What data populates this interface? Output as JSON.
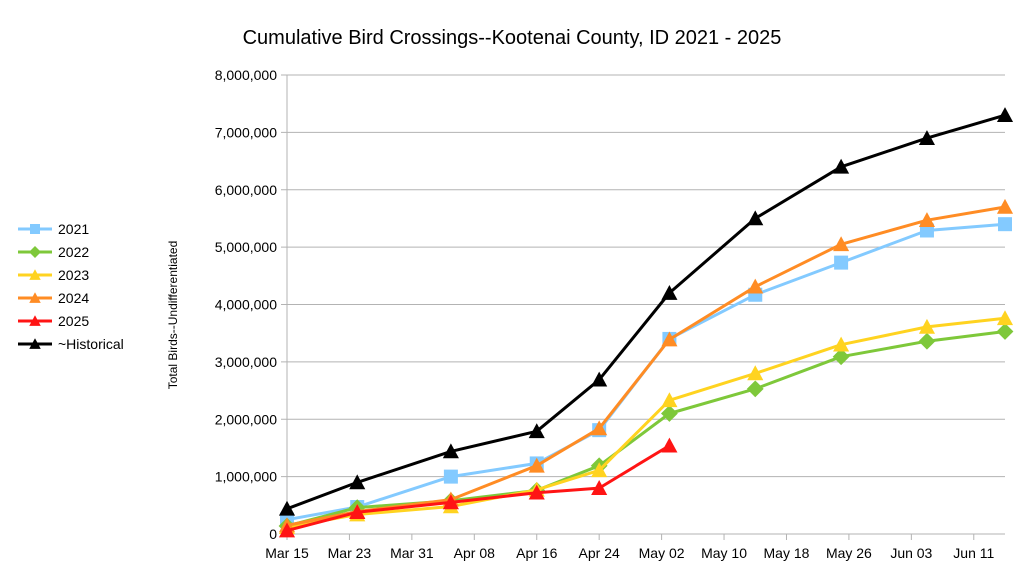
{
  "chart_data": {
    "type": "line",
    "title": "Cumulative Bird Crossings--Kootenai County, ID 2021 - 2025",
    "xlabel": "",
    "ylabel": "Total Birds--Undifferentiated",
    "x_ticks": [
      "Mar 15",
      "Mar 23",
      "Mar 31",
      "Apr 08",
      "Apr 16",
      "Apr 24",
      "May 02",
      "May 10",
      "May 18",
      "May 26",
      "Jun 03",
      "Jun 11"
    ],
    "y_ticks": [
      "0",
      "1,000,000",
      "2,000,000",
      "3,000,000",
      "4,000,000",
      "5,000,000",
      "6,000,000",
      "7,000,000",
      "8,000,000"
    ],
    "xlim": [
      "Mar 15",
      "Jun 15"
    ],
    "ylim": [
      0,
      8000000
    ],
    "grid": "horizontal",
    "legend_position": "left",
    "series": [
      {
        "name": "2021",
        "color": "#83CAFF",
        "marker": "square",
        "points": [
          [
            "Mar 15",
            250000
          ],
          [
            "Mar 24",
            470000
          ],
          [
            "Apr 05",
            1000000
          ],
          [
            "Apr 16",
            1230000
          ],
          [
            "Apr 24",
            1810000
          ],
          [
            "May 03",
            3400000
          ],
          [
            "May 14",
            4170000
          ],
          [
            "May 25",
            4730000
          ],
          [
            "Jun 05",
            5290000
          ],
          [
            "Jun 15",
            5400000
          ]
        ]
      },
      {
        "name": "2022",
        "color": "#7EC83A",
        "marker": "diamond",
        "points": [
          [
            "Mar 15",
            140000
          ],
          [
            "Mar 24",
            460000
          ],
          [
            "Apr 05",
            580000
          ],
          [
            "Apr 16",
            760000
          ],
          [
            "Apr 24",
            1190000
          ],
          [
            "May 03",
            2100000
          ],
          [
            "May 14",
            2530000
          ],
          [
            "May 25",
            3090000
          ],
          [
            "Jun 05",
            3360000
          ],
          [
            "Jun 15",
            3530000
          ]
        ]
      },
      {
        "name": "2023",
        "color": "#FFD320",
        "marker": "triangle",
        "points": [
          [
            "Mar 15",
            120000
          ],
          [
            "Mar 24",
            340000
          ],
          [
            "Apr 05",
            480000
          ],
          [
            "Apr 16",
            770000
          ],
          [
            "Apr 24",
            1110000
          ],
          [
            "May 03",
            2330000
          ],
          [
            "May 14",
            2800000
          ],
          [
            "May 25",
            3300000
          ],
          [
            "Jun 05",
            3610000
          ],
          [
            "Jun 15",
            3760000
          ]
        ]
      },
      {
        "name": "2024",
        "color": "#FF8C24",
        "marker": "triangle",
        "points": [
          [
            "Mar 15",
            150000
          ],
          [
            "Mar 24",
            390000
          ],
          [
            "Apr 05",
            600000
          ],
          [
            "Apr 16",
            1190000
          ],
          [
            "Apr 24",
            1840000
          ],
          [
            "May 03",
            3390000
          ],
          [
            "May 14",
            4310000
          ],
          [
            "May 25",
            5050000
          ],
          [
            "Jun 05",
            5470000
          ],
          [
            "Jun 15",
            5700000
          ]
        ]
      },
      {
        "name": "2025",
        "color": "#FF1414",
        "marker": "triangle",
        "points": [
          [
            "Mar 15",
            60000
          ],
          [
            "Mar 24",
            380000
          ],
          [
            "Apr 05",
            550000
          ],
          [
            "Apr 16",
            720000
          ],
          [
            "Apr 24",
            800000
          ],
          [
            "May 03",
            1540000
          ]
        ]
      },
      {
        "name": "~Historical",
        "color": "#000000",
        "marker": "triangle",
        "points": [
          [
            "Mar 15",
            440000
          ],
          [
            "Mar 24",
            900000
          ],
          [
            "Apr 05",
            1440000
          ],
          [
            "Apr 16",
            1790000
          ],
          [
            "Apr 24",
            2690000
          ],
          [
            "May 03",
            4200000
          ],
          [
            "May 14",
            5500000
          ],
          [
            "May 25",
            6400000
          ],
          [
            "Jun 05",
            6900000
          ],
          [
            "Jun 15",
            7300000
          ]
        ]
      }
    ]
  }
}
